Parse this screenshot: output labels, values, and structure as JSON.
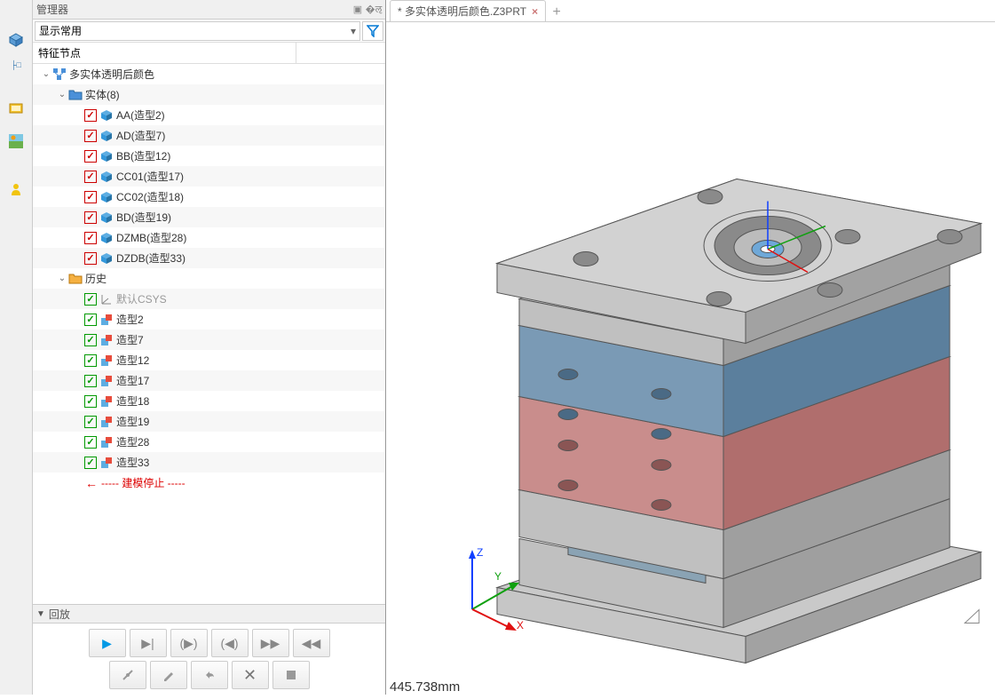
{
  "panel": {
    "title": "管理器"
  },
  "filter": {
    "selected": "显示常用"
  },
  "column": {
    "header": "特征节点"
  },
  "tree": {
    "root": "多实体透明后颜色",
    "entity_group": "实体(8)",
    "entities": [
      {
        "label": "AA(造型2)"
      },
      {
        "label": "AD(造型7)"
      },
      {
        "label": "BB(造型12)"
      },
      {
        "label": "CC01(造型17)"
      },
      {
        "label": "CC02(造型18)"
      },
      {
        "label": "BD(造型19)"
      },
      {
        "label": "DZMB(造型28)"
      },
      {
        "label": "DZDB(造型33)"
      }
    ],
    "history_group": "历史",
    "csys": "默认CSYS",
    "history": [
      {
        "label": "造型2"
      },
      {
        "label": "造型7"
      },
      {
        "label": "造型12"
      },
      {
        "label": "造型17"
      },
      {
        "label": "造型18"
      },
      {
        "label": "造型19"
      },
      {
        "label": "造型28"
      },
      {
        "label": "造型33"
      }
    ],
    "stop": "----- 建模停止 -----"
  },
  "playback": {
    "title": "回放"
  },
  "tab": {
    "name": "* 多实体透明后颜色.Z3PRT"
  },
  "status": {
    "text": "445.738mm"
  },
  "triad": {
    "x": "X",
    "y": "Y",
    "z": "Z"
  },
  "model": {
    "colors": {
      "top_plate": "#c9c9c9",
      "top_side": "#a8a8a8",
      "blue_front": "#7a9ab5",
      "blue_side": "#5b7f9d",
      "red_front": "#c98d8c",
      "red_side": "#b06e6d",
      "grey_front": "#c0c0c0",
      "grey_side": "#9f9f9f",
      "bottom_front": "#c6c6c6",
      "bottom_side": "#a2a2a2",
      "hole": "#8a8a8a",
      "edge": "#555"
    }
  }
}
